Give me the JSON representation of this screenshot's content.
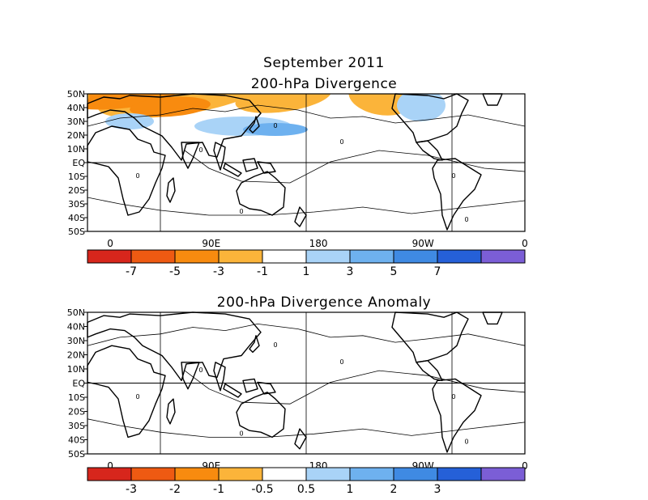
{
  "figure": {
    "month_title": "September 2011",
    "panel1_title": "200-hPa Divergence",
    "panel2_title": "200-hPa Divergence Anomaly"
  },
  "lat_labels": [
    "50N",
    "40N",
    "30N",
    "20N",
    "10N",
    "EQ",
    "10S",
    "20S",
    "30S",
    "40S",
    "50S"
  ],
  "lon_labels": [
    "0",
    "90E",
    "180",
    "90W",
    "0"
  ],
  "contour_label": "0",
  "colorbar1": {
    "colors": [
      "#d7261c",
      "#ee5a12",
      "#f88b0f",
      "#fbb43a",
      "#ffffff",
      "#a9d3f7",
      "#6eb1ef",
      "#3f8ae3",
      "#2560d8",
      "#7b5ed6"
    ],
    "labels": [
      "-7",
      "-5",
      "-3",
      "-1",
      "1",
      "3",
      "5",
      "7"
    ]
  },
  "colorbar2": {
    "colors": [
      "#d7261c",
      "#ee5a12",
      "#f88b0f",
      "#fbb43a",
      "#ffffff",
      "#a9d3f7",
      "#6eb1ef",
      "#3f8ae3",
      "#2560d8",
      "#7b5ed6"
    ],
    "labels": [
      "-3",
      "-2",
      "-1",
      "-0.5",
      "0.5",
      "1",
      "2",
      "3"
    ]
  }
}
